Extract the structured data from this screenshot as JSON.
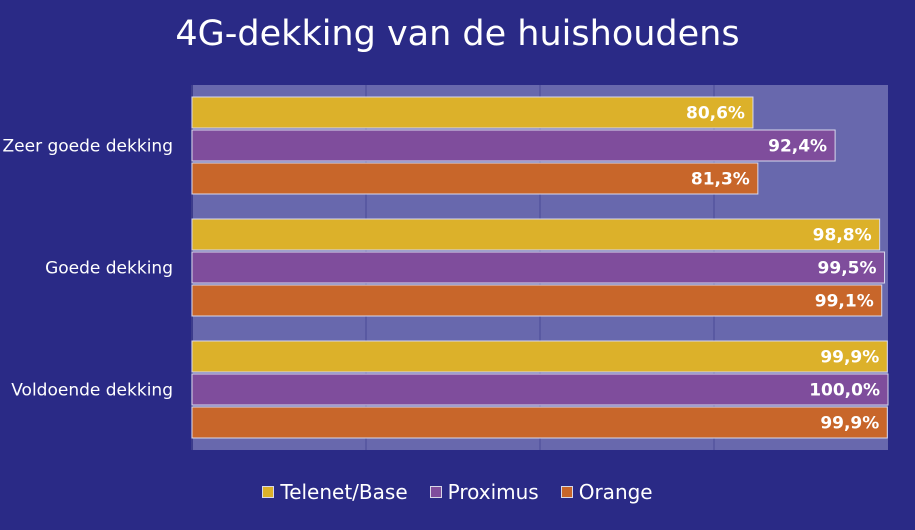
{
  "chart_data": {
    "type": "bar",
    "orientation": "horizontal",
    "title": "4G-dekking van de huishoudens",
    "categories": [
      "Zeer goede dekking",
      "Goede dekking",
      "Voldoende dekking"
    ],
    "series": [
      {
        "name": "Telenet/Base",
        "color": "#dcb12a",
        "values": [
          80.6,
          98.8,
          99.9
        ],
        "labels": [
          "80,6%",
          "98,8%",
          "99,9%"
        ]
      },
      {
        "name": "Proximus",
        "color": "#7f4d9c",
        "values": [
          92.4,
          99.5,
          100.0
        ],
        "labels": [
          "92,4%",
          "99,5%",
          "100,0%"
        ]
      },
      {
        "name": "Orange",
        "color": "#c8662a",
        "values": [
          81.3,
          99.1,
          99.9
        ],
        "labels": [
          "81,3%",
          "99,1%",
          "99,9%"
        ]
      }
    ],
    "xlim": [
      0,
      100
    ],
    "grid": true,
    "legend_position": "bottom"
  }
}
